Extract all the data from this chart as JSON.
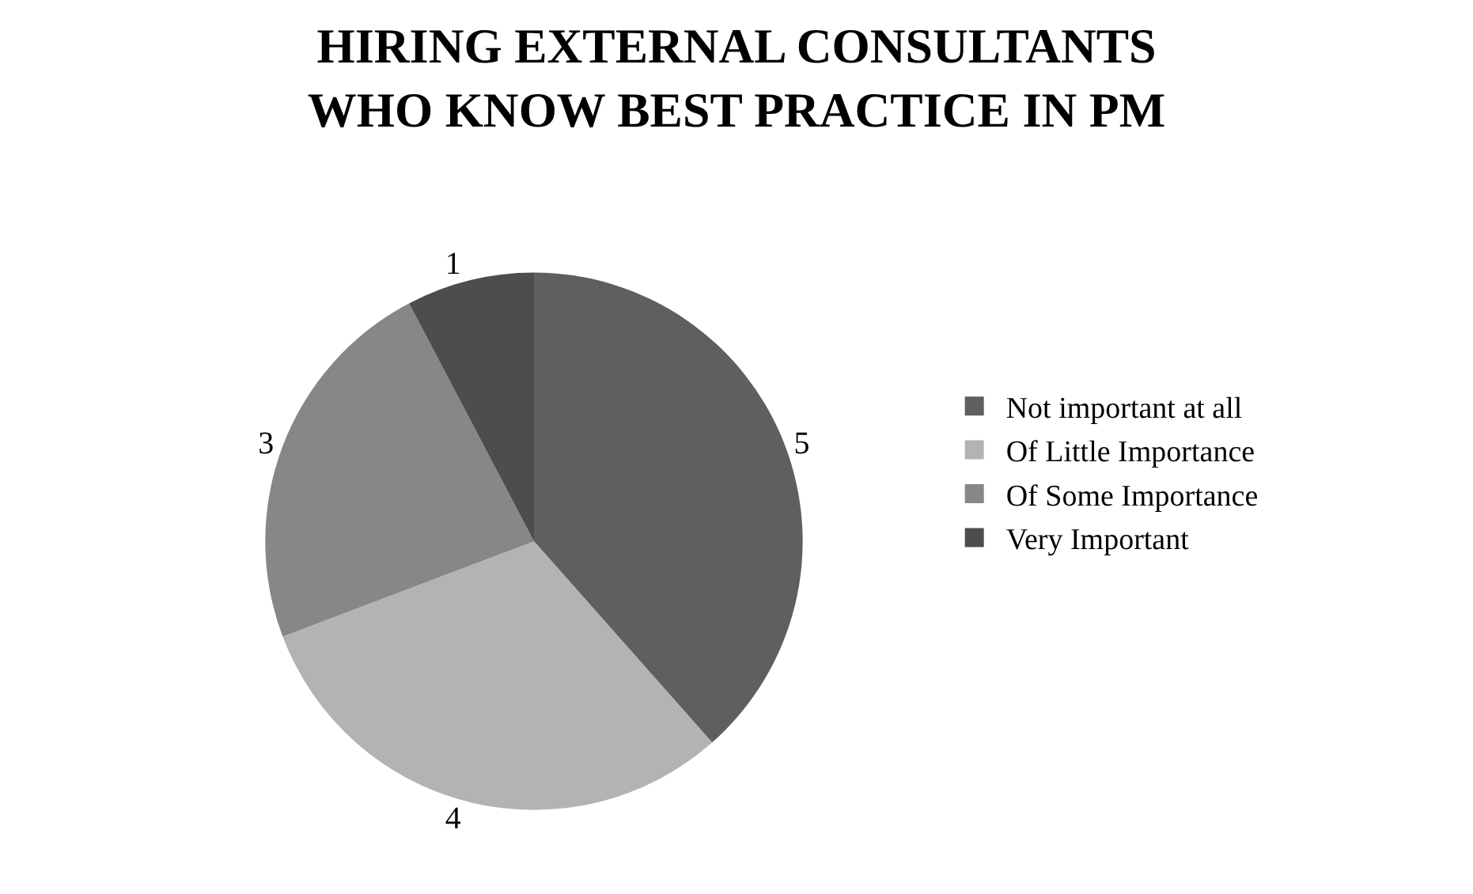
{
  "chart_data": {
    "type": "pie",
    "title": "HIRING EXTERNAL CONSULTANTS WHO KNOW BEST PRACTICE IN PM",
    "categories": [
      "Not important at all",
      "Of Little Importance",
      "Of Some Importance",
      "Very Important"
    ],
    "values": [
      5,
      4,
      3,
      1
    ],
    "colors": [
      "#5f5f5f",
      "#b3b3b3",
      "#878787",
      "#4d4d4d"
    ],
    "data_labels": true,
    "legend": "right"
  }
}
